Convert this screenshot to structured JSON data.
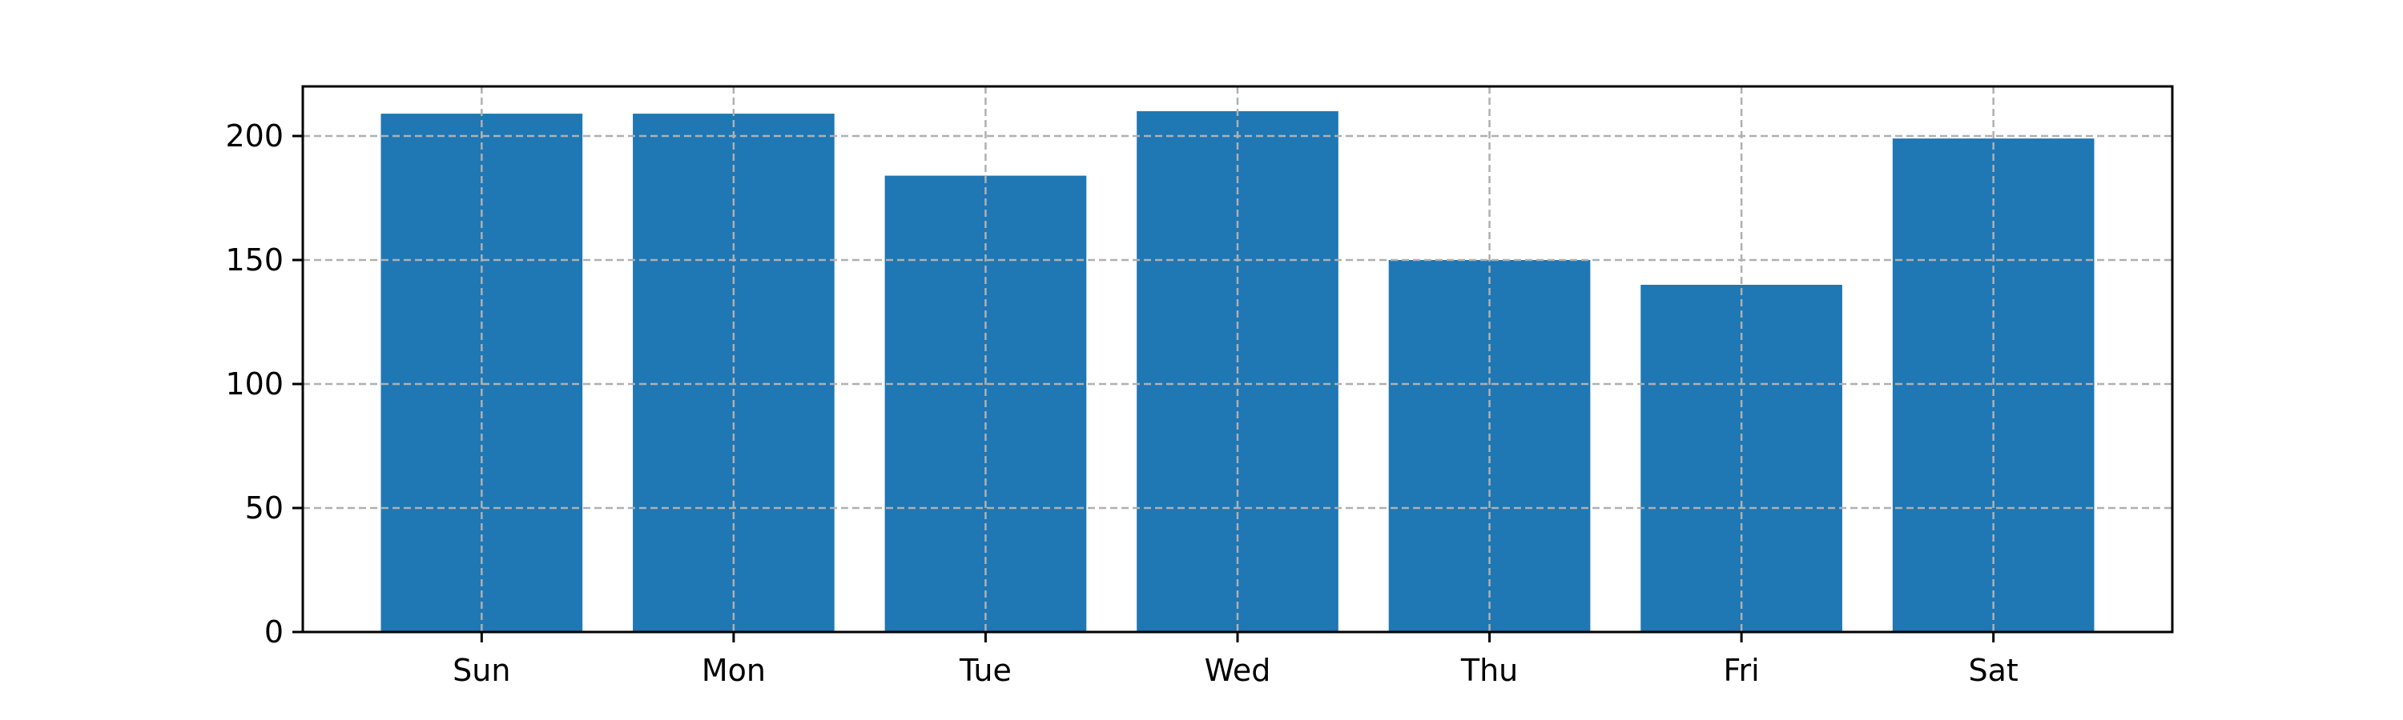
{
  "chart_data": {
    "type": "bar",
    "title": "",
    "xlabel": "",
    "ylabel": "",
    "categories": [
      "Sun",
      "Mon",
      "Tue",
      "Wed",
      "Thu",
      "Fri",
      "Sat"
    ],
    "values": [
      209,
      209,
      184,
      210,
      150,
      140,
      199
    ],
    "ylim": [
      0,
      220
    ],
    "yticks": [
      0,
      50,
      100,
      150,
      200
    ],
    "ytick_labels": [
      "0",
      "50",
      "100",
      "150",
      "200"
    ],
    "grid": true,
    "grid_style": "dashed",
    "bar_color": "#1f77b4",
    "grid_color": "#b0b0b0"
  }
}
